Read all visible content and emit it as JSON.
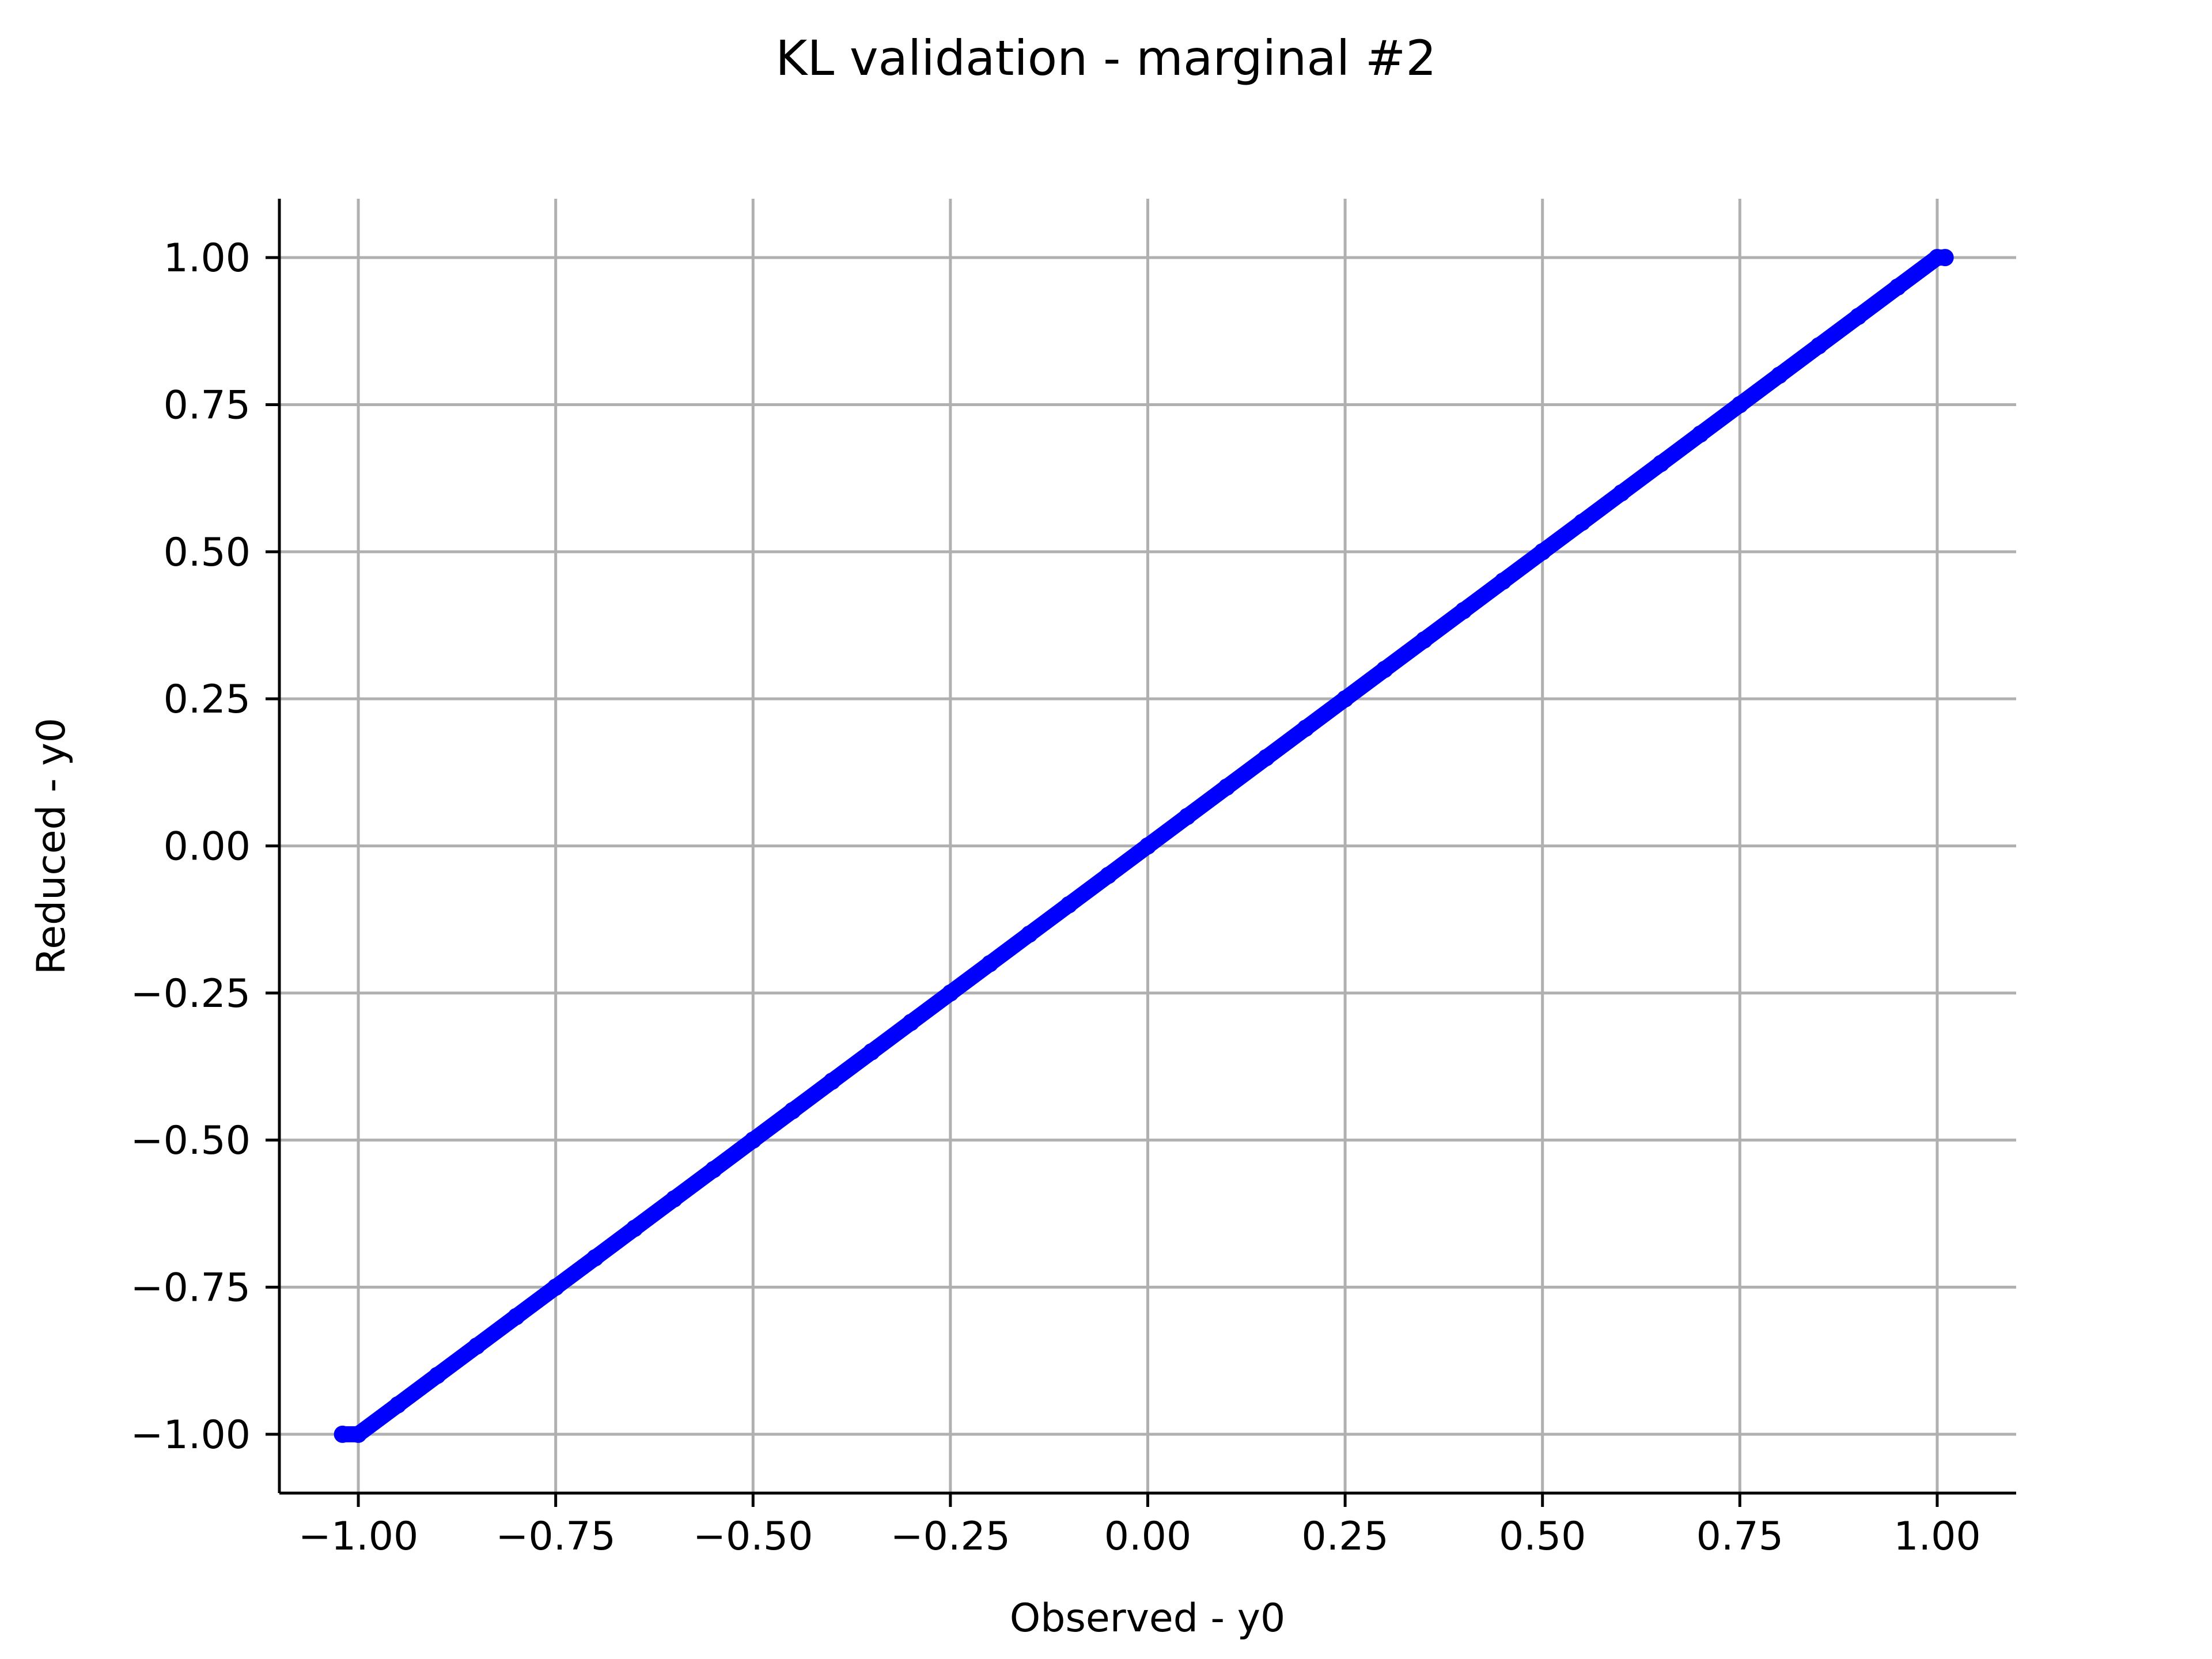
{
  "chart_data": {
    "type": "scatter",
    "title": "KL validation - marginal #2",
    "xlabel": "Observed - y0",
    "ylabel": "Reduced - y0",
    "xlim": [
      -1.1,
      1.1
    ],
    "ylim": [
      -1.1,
      1.1
    ],
    "xticks": [
      -1.0,
      -0.75,
      -0.5,
      -0.25,
      0.0,
      0.25,
      0.5,
      0.75,
      1.0
    ],
    "yticks": [
      -1.0,
      -0.75,
      -0.5,
      -0.25,
      0.0,
      0.25,
      0.5,
      0.75,
      1.0
    ],
    "xtick_labels": [
      "−1.00",
      "−0.75",
      "−0.50",
      "−0.25",
      "0.00",
      "0.25",
      "0.50",
      "0.75",
      "1.00"
    ],
    "ytick_labels": [
      "−1.00",
      "−0.75",
      "−0.50",
      "−0.25",
      "0.00",
      "0.25",
      "0.50",
      "0.75",
      "1.00"
    ],
    "grid": true,
    "marker_color": "#0000ff",
    "series": [
      {
        "x": [
          -1.02,
          -1.0,
          -0.95,
          -0.9,
          -0.85,
          -0.8,
          -0.75,
          -0.7,
          -0.65,
          -0.6,
          -0.55,
          -0.5,
          -0.45,
          -0.4,
          -0.35,
          -0.3,
          -0.25,
          -0.2,
          -0.15,
          -0.1,
          -0.05,
          0.0,
          0.05,
          0.1,
          0.15,
          0.2,
          0.25,
          0.3,
          0.35,
          0.4,
          0.45,
          0.5,
          0.55,
          0.6,
          0.65,
          0.7,
          0.75,
          0.8,
          0.85,
          0.9,
          0.95,
          1.0,
          1.01
        ],
        "y": [
          -1.0,
          -1.0,
          -0.95,
          -0.9,
          -0.85,
          -0.8,
          -0.75,
          -0.7,
          -0.65,
          -0.6,
          -0.55,
          -0.5,
          -0.45,
          -0.4,
          -0.35,
          -0.3,
          -0.25,
          -0.2,
          -0.15,
          -0.1,
          -0.05,
          0.0,
          0.05,
          0.1,
          0.15,
          0.2,
          0.25,
          0.3,
          0.35,
          0.4,
          0.45,
          0.5,
          0.55,
          0.6,
          0.65,
          0.7,
          0.75,
          0.8,
          0.85,
          0.9,
          0.95,
          1.0,
          1.0
        ]
      }
    ]
  }
}
